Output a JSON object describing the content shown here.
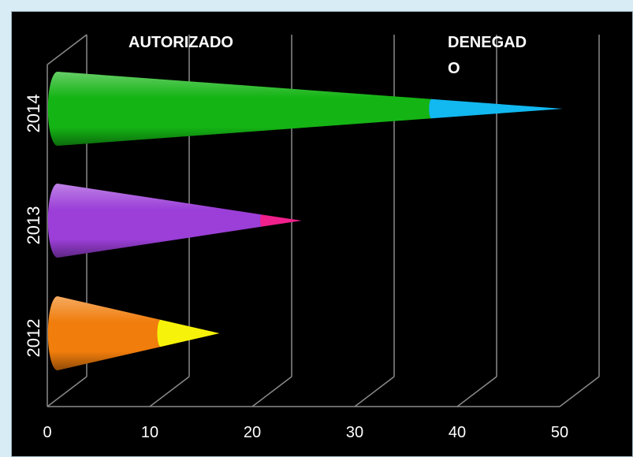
{
  "chart_data": {
    "type": "bar",
    "orientation": "horizontal",
    "shape": "cone-3d",
    "categories": [
      "2012",
      "2013",
      "2014"
    ],
    "series": [
      {
        "name": "AUTORIZADO",
        "values": [
          10.5,
          20.5,
          37
        ],
        "colors": [
          "#f07d0c",
          "#9b3fd8",
          "#14b414"
        ]
      },
      {
        "name": "DENEGADO",
        "values": [
          6,
          4,
          13
        ],
        "colors": [
          "#f7f20a",
          "#f0208c",
          "#12b8f0"
        ]
      }
    ],
    "xticks": [
      "0",
      "10",
      "20",
      "30",
      "40",
      "50"
    ],
    "xlim": [
      0,
      50
    ],
    "stacked": true,
    "grid": true,
    "legend": "top",
    "background": "#000000"
  }
}
